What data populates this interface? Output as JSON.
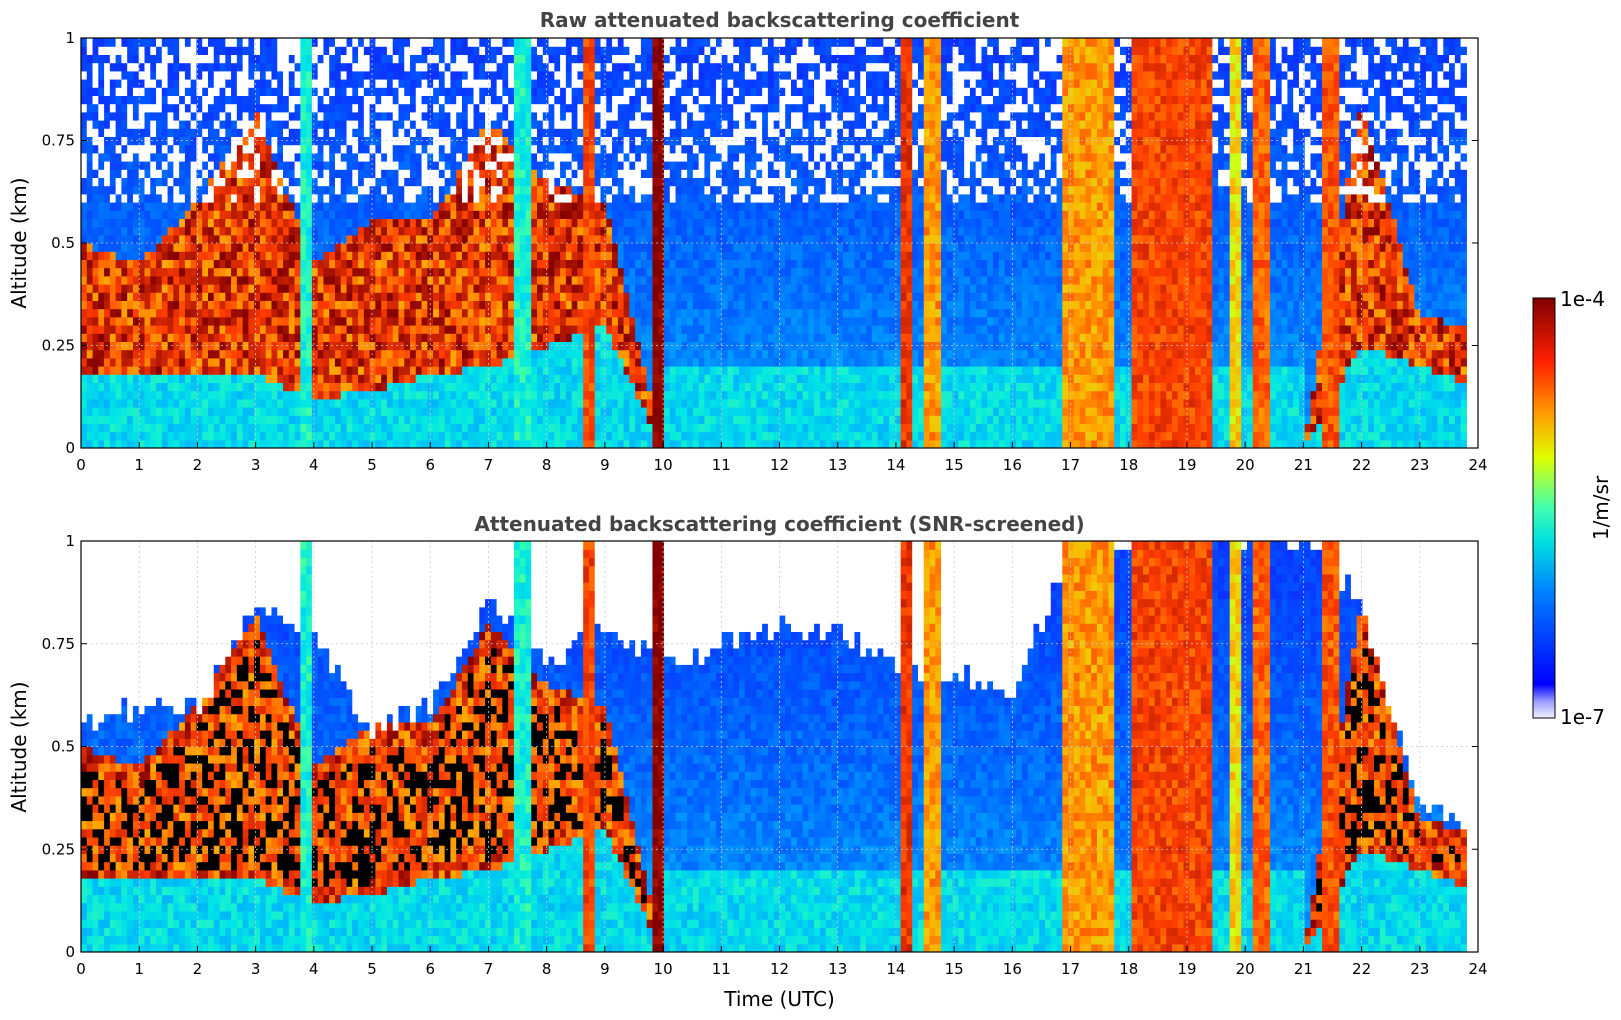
{
  "chart_data": [
    {
      "type": "heatmap",
      "title": "Raw attenuated backscattering coefficient",
      "xlabel": "",
      "ylabel": "Altitude (km)",
      "xlim": [
        0,
        24
      ],
      "ylim": [
        0,
        1
      ],
      "x_ticks": [
        "0",
        "1",
        "2",
        "3",
        "4",
        "5",
        "6",
        "7",
        "8",
        "9",
        "10",
        "11",
        "12",
        "13",
        "14",
        "15",
        "16",
        "17",
        "18",
        "19",
        "20",
        "21",
        "22",
        "23",
        "24"
      ],
      "y_ticks": [
        "0",
        "0.25",
        "0.5",
        "0.75",
        "1"
      ],
      "grid": true,
      "screened": false,
      "aerosol_layer": {
        "time": [
          0,
          1,
          2,
          3,
          4,
          5,
          6,
          7,
          8,
          9,
          10,
          11,
          12,
          13,
          14,
          15,
          16,
          17,
          18,
          19,
          20,
          21,
          22,
          23,
          23.8
        ],
        "base_km": [
          0.18,
          0.18,
          0.17,
          0.18,
          0.12,
          0.14,
          0.18,
          0.2,
          0.25,
          0.3,
          0.0,
          0.0,
          0.0,
          0.0,
          0.0,
          0.0,
          0.0,
          0.0,
          0.0,
          0.0,
          0.0,
          0.0,
          0.25,
          0.2,
          0.16
        ],
        "top_km": [
          0.5,
          0.45,
          0.6,
          0.82,
          0.45,
          0.55,
          0.55,
          0.8,
          0.65,
          0.6,
          0.0,
          0.0,
          0.0,
          0.0,
          0.0,
          0.0,
          0.0,
          0.0,
          0.0,
          0.0,
          0.0,
          0.0,
          0.85,
          0.32,
          0.3
        ]
      },
      "strong_columns": [
        {
          "start": 3.8,
          "end": 3.95,
          "level": 0.45
        },
        {
          "start": 7.45,
          "end": 7.7,
          "level": 0.45
        },
        {
          "start": 8.6,
          "end": 8.8,
          "level": 0.82
        },
        {
          "start": 9.8,
          "end": 10.0,
          "level": 1.0
        },
        {
          "start": 14.1,
          "end": 14.3,
          "level": 0.85
        },
        {
          "start": 14.45,
          "end": 14.75,
          "level": 0.72
        },
        {
          "start": 16.85,
          "end": 17.75,
          "level": 0.72
        },
        {
          "start": 18.0,
          "end": 19.4,
          "level": 0.82
        },
        {
          "start": 19.75,
          "end": 19.9,
          "level": 0.65
        },
        {
          "start": 20.15,
          "end": 20.4,
          "level": 0.78
        },
        {
          "start": 21.35,
          "end": 21.65,
          "level": 0.8
        }
      ]
    },
    {
      "type": "heatmap",
      "title": "Attenuated backscattering coefficient (SNR-screened)",
      "xlabel": "Time (UTC)",
      "ylabel": "Altitude (km)",
      "xlim": [
        0,
        24
      ],
      "ylim": [
        0,
        1
      ],
      "x_ticks": [
        "0",
        "1",
        "2",
        "3",
        "4",
        "5",
        "6",
        "7",
        "8",
        "9",
        "10",
        "11",
        "12",
        "13",
        "14",
        "15",
        "16",
        "17",
        "18",
        "19",
        "20",
        "21",
        "22",
        "23",
        "24"
      ],
      "y_ticks": [
        "0",
        "0.25",
        "0.5",
        "0.75",
        "1"
      ],
      "grid": true,
      "screened": true,
      "screen_top_km": {
        "time": [
          0,
          1,
          2,
          3,
          4,
          5,
          6,
          7,
          8,
          9,
          10,
          11,
          12,
          13,
          14,
          15,
          16,
          17,
          18,
          19,
          20,
          21,
          22,
          23,
          23.8
        ],
        "top_km": [
          0.55,
          0.6,
          0.6,
          0.85,
          0.75,
          0.55,
          0.6,
          0.85,
          0.7,
          0.8,
          0.7,
          0.75,
          0.8,
          0.78,
          0.7,
          0.68,
          0.6,
          1.0,
          1.0,
          1.0,
          1.0,
          1.0,
          0.85,
          0.35,
          0.32
        ]
      },
      "strong_columns": [
        {
          "start": 3.8,
          "end": 3.95,
          "level": 0.45
        },
        {
          "start": 7.45,
          "end": 7.7,
          "level": 0.45
        },
        {
          "start": 8.6,
          "end": 8.8,
          "level": 0.82
        },
        {
          "start": 9.8,
          "end": 10.0,
          "level": 1.0
        },
        {
          "start": 14.1,
          "end": 14.3,
          "level": 0.85
        },
        {
          "start": 14.45,
          "end": 14.75,
          "level": 0.72
        },
        {
          "start": 16.85,
          "end": 17.75,
          "level": 0.72
        },
        {
          "start": 18.0,
          "end": 19.4,
          "level": 0.82
        },
        {
          "start": 19.75,
          "end": 19.9,
          "level": 0.65
        },
        {
          "start": 20.15,
          "end": 20.4,
          "level": 0.78
        },
        {
          "start": 21.35,
          "end": 21.65,
          "level": 0.8
        }
      ]
    }
  ],
  "colorbar": {
    "max_label": "1e-4",
    "min_label": "1e-7",
    "label": "1/m/sr",
    "colormap": "jet"
  },
  "colors": {
    "background_clear": "#ffffff",
    "saturated": "#000000",
    "grid": "#c8c8c8",
    "title": "#444444"
  }
}
